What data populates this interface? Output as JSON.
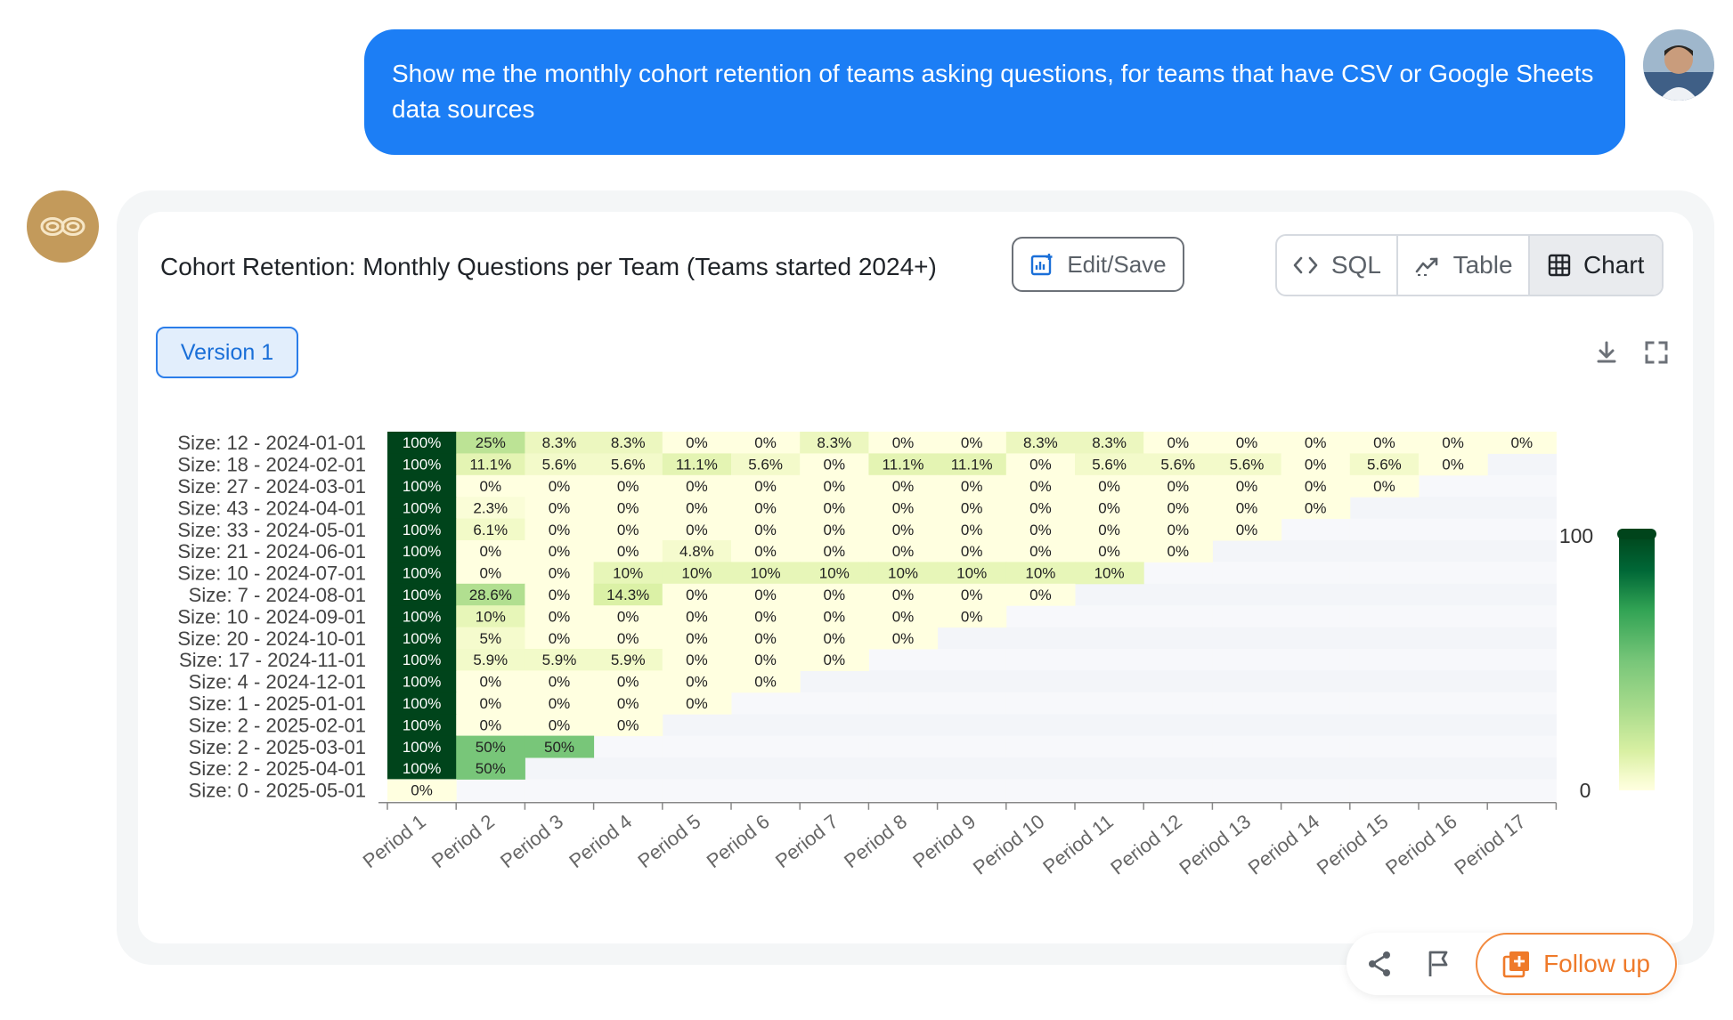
{
  "conversation": {
    "user_message": "Show me the monthly cohort retention of teams asking questions, for teams that have CSV or Google Sheets data sources"
  },
  "card": {
    "title": "Cohort Retention: Monthly Questions per Team (Teams started 2024+)",
    "edit_save_label": "Edit/Save",
    "view_tabs": [
      {
        "label": "SQL",
        "icon": "code-icon",
        "active": false
      },
      {
        "label": "Table",
        "icon": "table-trend-icon",
        "active": false
      },
      {
        "label": "Chart",
        "icon": "grid-icon",
        "active": true
      }
    ],
    "version_label": "Version 1",
    "toolbar_icons": [
      "download-icon",
      "fullscreen-icon"
    ]
  },
  "actions": {
    "follow_up_label": "Follow up",
    "icons": [
      "share-icon",
      "flag-icon",
      "plus-square-icon"
    ]
  },
  "colors": {
    "accent": "#1c7ef5",
    "follow_up": "#ef7a2a",
    "scale_low": "#ffffe0",
    "scale_high": "#00441b",
    "empty_cell": "#f5f7fa"
  },
  "chart_data": {
    "type": "heatmap",
    "title": "",
    "x_labels": [
      "Period 1",
      "Period 2",
      "Period 3",
      "Period 4",
      "Period 5",
      "Period 6",
      "Period 7",
      "Period 8",
      "Period 9",
      "Period 10",
      "Period 11",
      "Period 12",
      "Period 13",
      "Period 14",
      "Period 15",
      "Period 16",
      "Period 17"
    ],
    "y_labels": [
      "Size: 12 - 2024-01-01",
      "Size: 18 - 2024-02-01",
      "Size: 27 - 2024-03-01",
      "Size: 43 - 2024-04-01",
      "Size: 33 - 2024-05-01",
      "Size: 21 - 2024-06-01",
      "Size: 10 - 2024-07-01",
      "Size: 7 - 2024-08-01",
      "Size: 10 - 2024-09-01",
      "Size: 20 - 2024-10-01",
      "Size: 17 - 2024-11-01",
      "Size: 4 - 2024-12-01",
      "Size: 1 - 2025-01-01",
      "Size: 2 - 2025-02-01",
      "Size: 2 - 2025-03-01",
      "Size: 2 - 2025-04-01",
      "Size: 0 - 2025-05-01"
    ],
    "values": [
      [
        100,
        25,
        8.3,
        8.3,
        0,
        0,
        8.3,
        0,
        0,
        8.3,
        8.3,
        0,
        0,
        0,
        0,
        0,
        0
      ],
      [
        100,
        11.1,
        5.6,
        5.6,
        11.1,
        5.6,
        0,
        11.1,
        11.1,
        0,
        5.6,
        5.6,
        5.6,
        0,
        5.6,
        0
      ],
      [
        100,
        0,
        0,
        0,
        0,
        0,
        0,
        0,
        0,
        0,
        0,
        0,
        0,
        0,
        0
      ],
      [
        100,
        2.3,
        0,
        0,
        0,
        0,
        0,
        0,
        0,
        0,
        0,
        0,
        0,
        0
      ],
      [
        100,
        6.1,
        0,
        0,
        0,
        0,
        0,
        0,
        0,
        0,
        0,
        0,
        0
      ],
      [
        100,
        0,
        0,
        0,
        4.8,
        0,
        0,
        0,
        0,
        0,
        0,
        0
      ],
      [
        100,
        0,
        0,
        10,
        10,
        10,
        10,
        10,
        10,
        10,
        10
      ],
      [
        100,
        28.6,
        0,
        14.3,
        0,
        0,
        0,
        0,
        0,
        0
      ],
      [
        100,
        10,
        0,
        0,
        0,
        0,
        0,
        0,
        0
      ],
      [
        100,
        5,
        0,
        0,
        0,
        0,
        0,
        0
      ],
      [
        100,
        5.9,
        5.9,
        5.9,
        0,
        0,
        0
      ],
      [
        100,
        0,
        0,
        0,
        0,
        0
      ],
      [
        100,
        0,
        0,
        0,
        0
      ],
      [
        100,
        0,
        0,
        0
      ],
      [
        100,
        50,
        50
      ],
      [
        100,
        50
      ],
      [
        0
      ]
    ],
    "cell_labels": [
      [
        "100%",
        "25%",
        "8.3%",
        "8.3%",
        "0%",
        "0%",
        "8.3%",
        "0%",
        "0%",
        "8.3%",
        "8.3%",
        "0%",
        "0%",
        "0%",
        "0%",
        "0%",
        "0%"
      ],
      [
        "100%",
        "11.1%",
        "5.6%",
        "5.6%",
        "11.1%",
        "5.6%",
        "0%",
        "11.1%",
        "11.1%",
        "0%",
        "5.6%",
        "5.6%",
        "5.6%",
        "0%",
        "5.6%",
        "0%"
      ],
      [
        "100%",
        "0%",
        "0%",
        "0%",
        "0%",
        "0%",
        "0%",
        "0%",
        "0%",
        "0%",
        "0%",
        "0%",
        "0%",
        "0%",
        "0%"
      ],
      [
        "100%",
        "2.3%",
        "0%",
        "0%",
        "0%",
        "0%",
        "0%",
        "0%",
        "0%",
        "0%",
        "0%",
        "0%",
        "0%",
        "0%"
      ],
      [
        "100%",
        "6.1%",
        "0%",
        "0%",
        "0%",
        "0%",
        "0%",
        "0%",
        "0%",
        "0%",
        "0%",
        "0%",
        "0%"
      ],
      [
        "100%",
        "0%",
        "0%",
        "0%",
        "4.8%",
        "0%",
        "0%",
        "0%",
        "0%",
        "0%",
        "0%",
        "0%"
      ],
      [
        "100%",
        "0%",
        "0%",
        "10%",
        "10%",
        "10%",
        "10%",
        "10%",
        "10%",
        "10%",
        "10%"
      ],
      [
        "100%",
        "28.6%",
        "0%",
        "14.3%",
        "0%",
        "0%",
        "0%",
        "0%",
        "0%",
        "0%"
      ],
      [
        "100%",
        "10%",
        "0%",
        "0%",
        "0%",
        "0%",
        "0%",
        "0%",
        "0%"
      ],
      [
        "100%",
        "5%",
        "0%",
        "0%",
        "0%",
        "0%",
        "0%",
        "0%"
      ],
      [
        "100%",
        "5.9%",
        "5.9%",
        "5.9%",
        "0%",
        "0%",
        "0%"
      ],
      [
        "100%",
        "0%",
        "0%",
        "0%",
        "0%",
        "0%"
      ],
      [
        "100%",
        "0%",
        "0%",
        "0%",
        "0%"
      ],
      [
        "100%",
        "0%",
        "0%",
        "0%"
      ],
      [
        "100%",
        "50%",
        "50%"
      ],
      [
        "100%",
        "50%"
      ],
      [
        "0%"
      ]
    ],
    "colorbar": {
      "min": 0,
      "max": 100,
      "min_label": "0",
      "max_label": "100"
    },
    "xlabel": "",
    "ylabel": ""
  }
}
